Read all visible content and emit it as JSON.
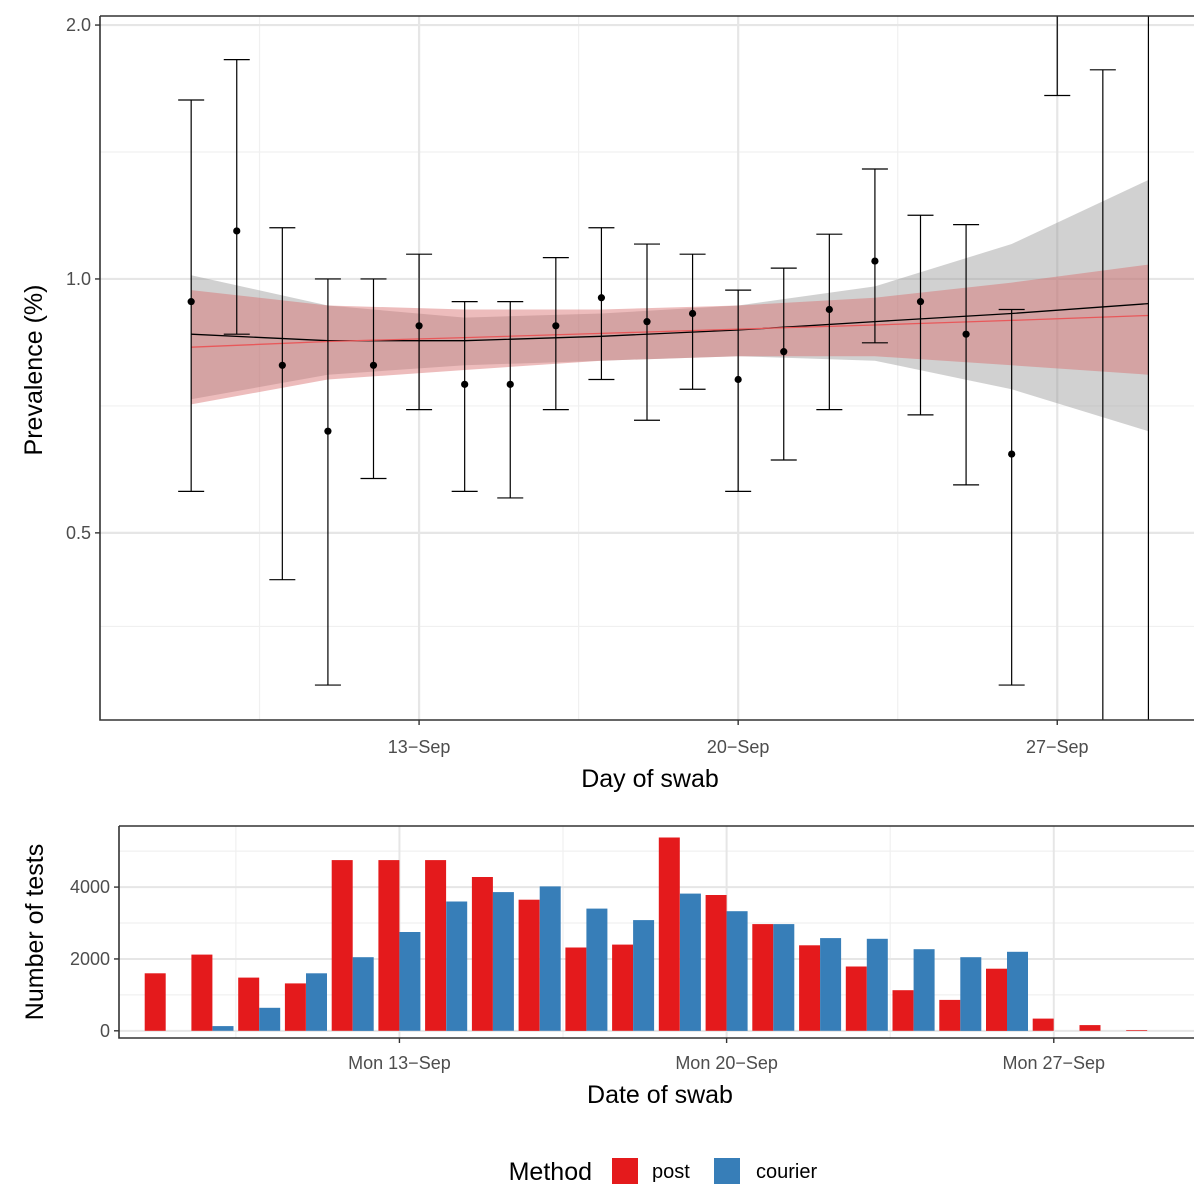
{
  "chart_data": [
    {
      "type": "scatter",
      "xlabel": "Day of swab",
      "ylabel": "Prevalence (%)",
      "y_scale": "log",
      "ylim": [
        0.3,
        2.05
      ],
      "xlim": [
        "2021-09-06",
        "2021-09-30"
      ],
      "y_ticks": [
        {
          "value": 0.5,
          "label": "0.5"
        },
        {
          "value": 1.0,
          "label": "1.0"
        },
        {
          "value": 2.0,
          "label": "2.0"
        }
      ],
      "x_ticks": [
        {
          "date": "2021-09-13",
          "label": "13−Sep"
        },
        {
          "date": "2021-09-20",
          "label": "20−Sep"
        },
        {
          "date": "2021-09-27",
          "label": "27−Sep"
        }
      ],
      "grid": true,
      "points": [
        {
          "date": "2021-09-08",
          "estimate": 0.94,
          "lower": 0.56,
          "upper": 1.63
        },
        {
          "date": "2021-09-09",
          "estimate": 1.14,
          "lower": 0.86,
          "upper": 1.82
        },
        {
          "date": "2021-09-10",
          "estimate": 0.79,
          "lower": 0.44,
          "upper": 1.15
        },
        {
          "date": "2021-09-11",
          "estimate": 0.66,
          "lower": 0.33,
          "upper": 1.0
        },
        {
          "date": "2021-09-12",
          "estimate": 0.79,
          "lower": 0.58,
          "upper": 1.0
        },
        {
          "date": "2021-09-13",
          "estimate": 0.88,
          "lower": 0.7,
          "upper": 1.07
        },
        {
          "date": "2021-09-14",
          "estimate": 0.75,
          "lower": 0.56,
          "upper": 0.94
        },
        {
          "date": "2021-09-15",
          "estimate": 0.75,
          "lower": 0.55,
          "upper": 0.94
        },
        {
          "date": "2021-09-16",
          "estimate": 0.88,
          "lower": 0.7,
          "upper": 1.06
        },
        {
          "date": "2021-09-17",
          "estimate": 0.95,
          "lower": 0.76,
          "upper": 1.15
        },
        {
          "date": "2021-09-18",
          "estimate": 0.89,
          "lower": 0.68,
          "upper": 1.1
        },
        {
          "date": "2021-09-19",
          "estimate": 0.91,
          "lower": 0.74,
          "upper": 1.07
        },
        {
          "date": "2021-09-20",
          "estimate": 0.76,
          "lower": 0.56,
          "upper": 0.97
        },
        {
          "date": "2021-09-21",
          "estimate": 0.82,
          "lower": 0.61,
          "upper": 1.03
        },
        {
          "date": "2021-09-22",
          "estimate": 0.92,
          "lower": 0.7,
          "upper": 1.13
        },
        {
          "date": "2021-09-23",
          "estimate": 1.05,
          "lower": 0.84,
          "upper": 1.35
        },
        {
          "date": "2021-09-24",
          "estimate": 0.94,
          "lower": 0.69,
          "upper": 1.19
        },
        {
          "date": "2021-09-25",
          "estimate": 0.86,
          "lower": 0.57,
          "upper": 1.16
        },
        {
          "date": "2021-09-26",
          "estimate": 0.62,
          "lower": 0.33,
          "upper": 0.92
        },
        {
          "date": "2021-09-27",
          "estimate": null,
          "lower": 1.65,
          "upper": 2.05
        },
        {
          "date": "2021-09-28",
          "estimate": null,
          "lower": 0.3,
          "upper": 1.77
        },
        {
          "date": "2021-09-29",
          "estimate": null,
          "lower": 0.3,
          "upper": 2.05
        }
      ],
      "smooth_fits": [
        {
          "color": "#000000",
          "band_color": "#999999",
          "x": [
            "2021-09-08",
            "2021-09-11",
            "2021-09-14",
            "2021-09-17",
            "2021-09-20",
            "2021-09-23",
            "2021-09-26",
            "2021-09-29"
          ],
          "y": [
            0.86,
            0.845,
            0.845,
            0.855,
            0.87,
            0.89,
            0.91,
            0.935
          ],
          "lower": [
            0.72,
            0.77,
            0.79,
            0.8,
            0.81,
            0.8,
            0.74,
            0.66
          ],
          "upper": [
            1.01,
            0.93,
            0.9,
            0.91,
            0.93,
            0.98,
            1.1,
            1.31
          ]
        },
        {
          "color": "#e8585a",
          "band_color": "#d66a6a",
          "x": [
            "2021-09-08",
            "2021-09-11",
            "2021-09-14",
            "2021-09-17",
            "2021-09-20",
            "2021-09-23",
            "2021-09-26",
            "2021-09-29"
          ],
          "y": [
            0.83,
            0.843,
            0.852,
            0.862,
            0.872,
            0.882,
            0.893,
            0.905
          ],
          "lower": [
            0.71,
            0.76,
            0.78,
            0.8,
            0.81,
            0.81,
            0.79,
            0.77
          ],
          "upper": [
            0.97,
            0.93,
            0.92,
            0.92,
            0.93,
            0.95,
            0.99,
            1.04
          ]
        }
      ]
    },
    {
      "type": "bar",
      "xlabel": "Date of swab",
      "ylabel": "Number of tests",
      "ylim": [
        -200,
        5700
      ],
      "xlim": [
        "2021-09-07",
        "2021-09-30"
      ],
      "y_ticks": [
        {
          "value": 0,
          "label": "0"
        },
        {
          "value": 2000,
          "label": "2000"
        },
        {
          "value": 4000,
          "label": "4000"
        }
      ],
      "x_ticks": [
        {
          "date": "2021-09-13",
          "label": "Mon 13−Sep"
        },
        {
          "date": "2021-09-20",
          "label": "Mon 20−Sep"
        },
        {
          "date": "2021-09-27",
          "label": "Mon 27−Sep"
        }
      ],
      "grid": true,
      "categories": [
        "2021-09-08",
        "2021-09-09",
        "2021-09-10",
        "2021-09-11",
        "2021-09-12",
        "2021-09-13",
        "2021-09-14",
        "2021-09-15",
        "2021-09-16",
        "2021-09-17",
        "2021-09-18",
        "2021-09-19",
        "2021-09-20",
        "2021-09-21",
        "2021-09-22",
        "2021-09-23",
        "2021-09-24",
        "2021-09-25",
        "2021-09-26",
        "2021-09-27",
        "2021-09-28",
        "2021-09-29",
        "2021-09-30"
      ],
      "series": [
        {
          "name": "post",
          "color": "#e41a1c",
          "values": [
            1600,
            2120,
            1480,
            1320,
            4750,
            4750,
            4750,
            4280,
            3650,
            2320,
            2400,
            5380,
            3780,
            2970,
            2380,
            1790,
            1130,
            860,
            1730,
            340,
            160,
            20,
            0
          ]
        },
        {
          "name": "courier",
          "color": "#377eb8",
          "values": [
            0,
            130,
            640,
            1600,
            2050,
            2750,
            3600,
            3860,
            4020,
            3400,
            3080,
            3820,
            3330,
            2970,
            2580,
            2560,
            2270,
            2050,
            2200,
            0,
            0,
            0,
            0
          ]
        }
      ],
      "legend": {
        "title": "Method",
        "position": "bottom"
      }
    }
  ]
}
